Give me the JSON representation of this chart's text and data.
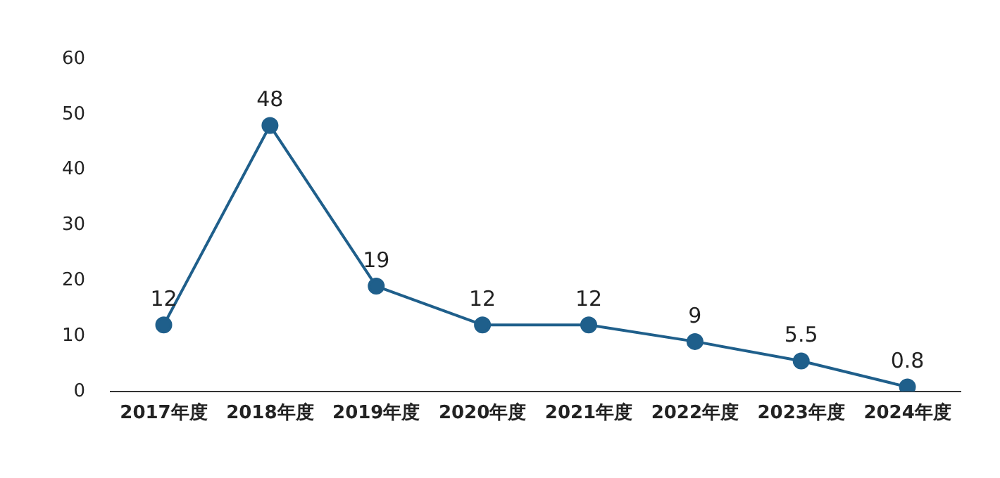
{
  "chart_data": {
    "type": "line",
    "categories": [
      "2017年度",
      "2018年度",
      "2019年度",
      "2020年度",
      "2021年度",
      "2022年度",
      "2023年度",
      "2024年度"
    ],
    "series": [
      {
        "color": "#1f5f8b",
        "values": [
          12,
          48,
          19,
          12,
          12,
          9,
          5.5,
          0.8
        ]
      }
    ],
    "ylim": [
      0,
      60
    ],
    "yticks": [
      0,
      10,
      20,
      30,
      40,
      50,
      60
    ],
    "grid": false,
    "marker": "circle",
    "line_style": "solid",
    "data_labels": true
  }
}
